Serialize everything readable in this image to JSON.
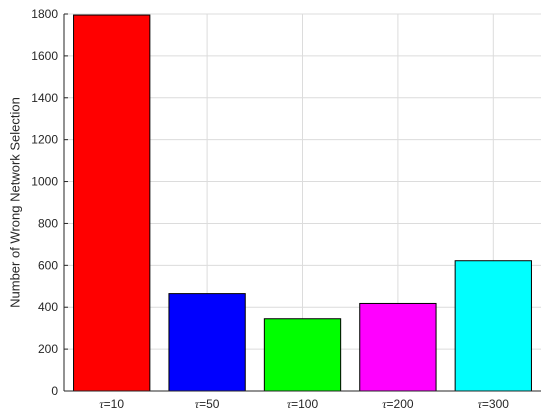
{
  "chart_data": {
    "type": "bar",
    "categories": [
      "τ=10",
      "τ=50",
      "τ=100",
      "τ=200",
      "τ=300"
    ],
    "category_labels": [
      {
        "symbol": "τ",
        "rest": "=10"
      },
      {
        "symbol": "τ",
        "rest": "=50"
      },
      {
        "symbol": "τ",
        "rest": "=100"
      },
      {
        "symbol": "τ",
        "rest": "=200"
      },
      {
        "symbol": "τ",
        "rest": "=300"
      }
    ],
    "values": [
      1795,
      465,
      345,
      418,
      622
    ],
    "colors": [
      "#ff0000",
      "#0000ff",
      "#00ff00",
      "#ff00ff",
      "#00ffff"
    ],
    "title": "",
    "xlabel": "",
    "ylabel": "Number of Wrong Network Selection",
    "ylim": [
      0,
      1800
    ],
    "yticks": [
      0,
      200,
      400,
      600,
      800,
      1000,
      1200,
      1400,
      1600,
      1800
    ],
    "grid": true,
    "legend": "none"
  }
}
